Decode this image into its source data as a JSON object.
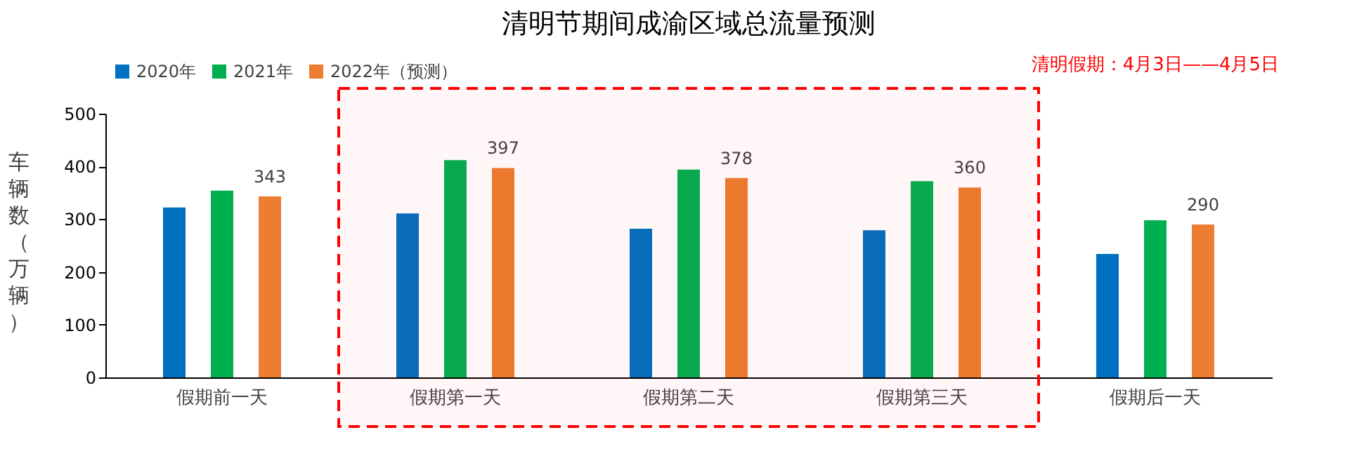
{
  "chart_data": {
    "type": "bar",
    "title": "清明节期间成渝区域总流量预测",
    "ylabel": "车辆数（万辆）",
    "categories": [
      "假期前一天",
      "假期第一天",
      "假期第二天",
      "假期第三天",
      "假期后一天"
    ],
    "series": [
      {
        "name": "2020年",
        "color": "#0070c0",
        "values": [
          322,
          311,
          282,
          279,
          234
        ]
      },
      {
        "name": "2021年",
        "color": "#00b050",
        "values": [
          354,
          412,
          394,
          372,
          298
        ]
      },
      {
        "name": "2022年（预测）",
        "color": "#ed7d31",
        "values": [
          343,
          397,
          378,
          360,
          290
        ],
        "value_labels": [
          "343",
          "397",
          "378",
          "360",
          "290"
        ]
      }
    ],
    "ylim": [
      0,
      500
    ],
    "yticks": [
      0,
      100,
      200,
      300,
      400,
      500
    ],
    "grid": false,
    "legend": "top",
    "bands": [
      {
        "axis": "x",
        "from": "假期第一天",
        "to": "假期第三天",
        "label": "清明假期：4月3日——4月5日",
        "color": "#ff0000"
      }
    ]
  }
}
